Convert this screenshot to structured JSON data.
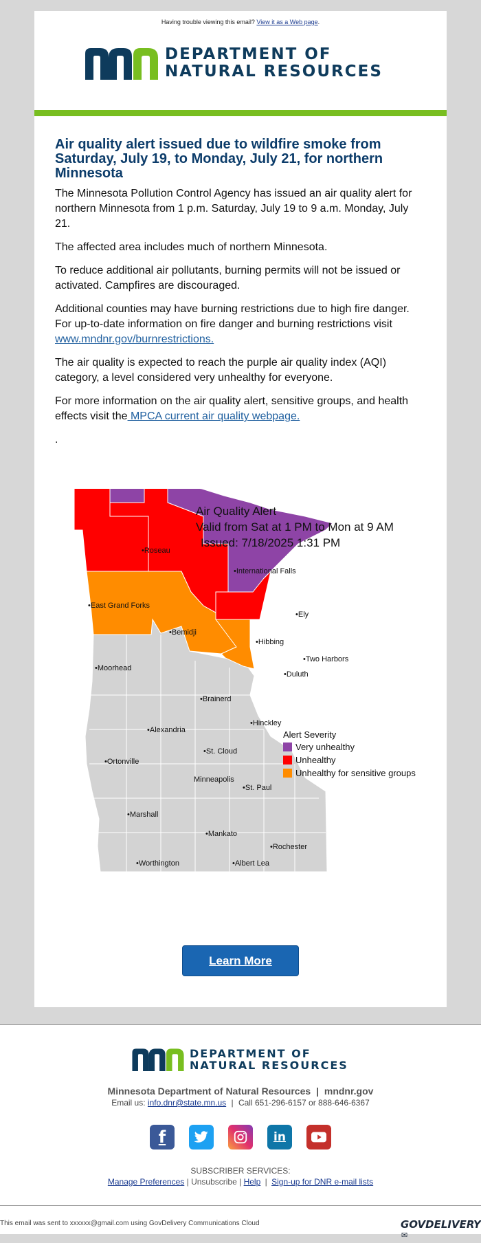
{
  "header": {
    "trouble_text": "Having trouble viewing this email?",
    "trouble_link": "View it as a Web page",
    "trouble_end": "."
  },
  "logo": {
    "line1": "DEPARTMENT OF",
    "line2": "NATURAL RESOURCES"
  },
  "article": {
    "headline": "Air quality alert issued due to wildfire smoke from Saturday, July 19, to Monday, July 21, for northern Minnesota",
    "p1": "The Minnesota Pollution Control Agency has issued an air quality alert for northern Minnesota from 1 p.m. Saturday, July 19 to 9 a.m. Monday, July 21.",
    "p2": "The affected area includes much of northern Minnesota.",
    "p3": "To reduce additional air pollutants, burning permits will not be issued or activated. Campfires are discouraged.",
    "p4_text": "Additional counties may have burning restrictions due to high fire danger. For up-to-date information on fire danger and burning restrictions visit",
    "p4_link": "www.mndnr.gov/burnrestrictions.",
    "p5": "The air quality is expected to reach the purple air quality index (AQI) category, a level considered very unhealthy for everyone.",
    "p6_text": "For more information on the air quality alert, sensitive groups, and health effects visit the",
    "p6_link": " MPCA current air quality webpage.",
    "dot": "."
  },
  "map": {
    "title": "Air Quality Alert",
    "valid": "Valid from Sat at 1 PM to Mon at 9 AM",
    "issued": "Issued: 7/18/2025 1:31 PM",
    "legend_title": "Alert Severity",
    "legend": [
      {
        "label": "Very unhealthy",
        "color": "#8e44a6"
      },
      {
        "label": "Unhealthy",
        "color": "#ff0000"
      },
      {
        "label": "Unhealthy for sensitive groups",
        "color": "#ff8c00"
      }
    ],
    "cities": {
      "roseau": "Roseau",
      "intl_falls": "International Falls",
      "egf": "East Grand Forks",
      "ely": "Ely",
      "bemidji": "Bemidji",
      "hibbing": "Hibbing",
      "two_harbors": "Two Harbors",
      "moorhead": "Moorhead",
      "duluth": "Duluth",
      "brainerd": "Brainerd",
      "hinckley": "Hinckley",
      "alexandria": "Alexandria",
      "st_cloud": "St. Cloud",
      "ortonville": "Ortonville",
      "minneapolis": "Minneapolis",
      "st_paul": "St. Paul",
      "marshall": "Marshall",
      "mankato": "Mankato",
      "rochester": "Rochester",
      "worthington": "Worthington",
      "albert_lea": "Albert Lea"
    }
  },
  "cta": {
    "label": "Learn More"
  },
  "footer": {
    "org": "Minnesota Department of Natural Resources",
    "sep": "|",
    "site": "mndnr.gov",
    "email_label": "Email us:",
    "email": "info.dnr@state.mn.us",
    "call": "Call 651-296-6157 or 888-646-6367",
    "subscriber": "SUBSCRIBER SERVICES:",
    "manage": "Manage Preferences",
    "unsubscribe": "Unsubscribe",
    "help": "Help",
    "signup": "Sign-up for DNR e-mail lists",
    "sent": "This email was sent to xxxxxx@gmail.com using GovDelivery Communications Cloud",
    "gov": "GOVDELIVERY"
  },
  "socials": [
    {
      "name": "facebook-icon",
      "glyph": "f",
      "color": "#3b5998"
    },
    {
      "name": "twitter-icon",
      "glyph": "🐦",
      "color": "#1da1f2"
    },
    {
      "name": "instagram-icon",
      "glyph": "◎",
      "color": "#c13584"
    },
    {
      "name": "linkedin-icon",
      "glyph": "in",
      "color": "#0e76a8"
    },
    {
      "name": "youtube-icon",
      "glyph": "▶",
      "color": "#c4302b"
    }
  ]
}
